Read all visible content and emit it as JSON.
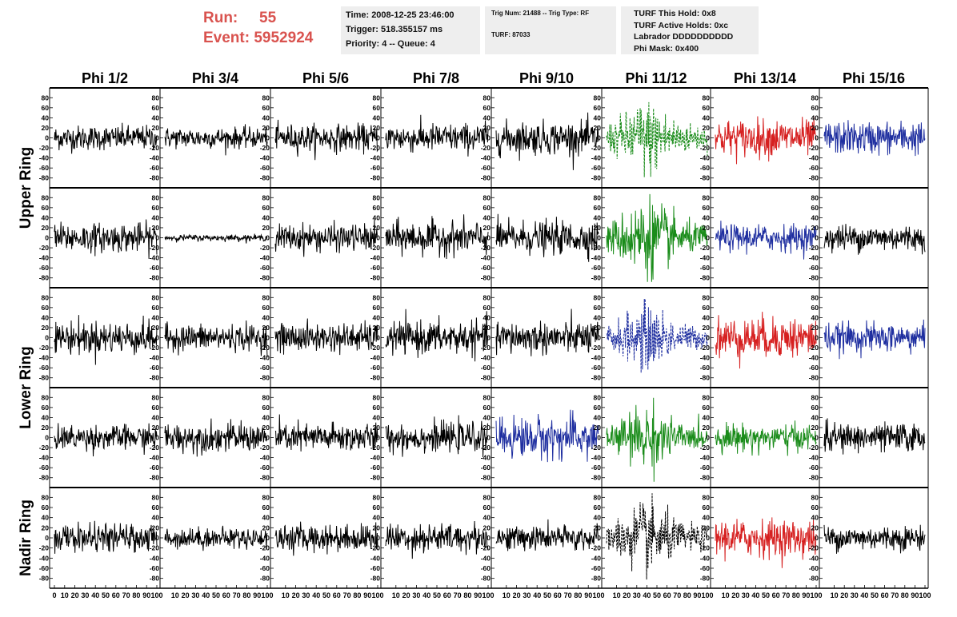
{
  "header": {
    "run_label": "Run:",
    "run_value": "55",
    "event_label": "Event:",
    "event_value": "5952924",
    "time": "Time: 2008-12-25 23:46:00",
    "trigger": "Trigger: 518.355157 ms",
    "priority": "Priority: 4 -- Queue: 4",
    "trig_num": "Trig Num: 21488 -- Trig Type: RF",
    "turf": "TURF: 87033",
    "turf_hold": "TURF This Hold: 0x8",
    "turf_active": "TURF Active Holds: 0xc",
    "labrador": "Labrador DDDDDDDDDD",
    "phi_mask": "Phi Mask: 0x400",
    "title_color": "#d9534f"
  },
  "chart_data": {
    "type": "line",
    "columns": [
      "Phi 1/2",
      "Phi 3/4",
      "Phi 5/6",
      "Phi 7/8",
      "Phi 9/10",
      "Phi 11/12",
      "Phi 13/14",
      "Phi 15/16"
    ],
    "ring_labels": [
      "Upper Ring",
      "Lower Ring",
      "Nadir Ring"
    ],
    "y_ticks": [
      "80",
      "60",
      "40",
      "20",
      "0",
      "-20",
      "-40",
      "-60",
      "-80"
    ],
    "ylim": [
      -90,
      90
    ],
    "x_ticks": [
      "0",
      "10",
      "20",
      "30",
      "40",
      "50",
      "60",
      "70",
      "80",
      "90",
      "100"
    ],
    "xlim": [
      0,
      100
    ],
    "colors": {
      "black": "#000000",
      "green": "#1a8c1a",
      "red": "#d62020",
      "blue": "#1f2fa0"
    },
    "rows": [
      {
        "traces": [
          {
            "color": "black",
            "amp": 12,
            "style": "solid"
          },
          {
            "color": "black",
            "amp": 10,
            "style": "solid"
          },
          {
            "color": "black",
            "amp": 13,
            "style": "solid"
          },
          {
            "color": "black",
            "amp": 14,
            "style": "solid"
          },
          {
            "color": "black",
            "amp": 16,
            "style": "solid"
          },
          {
            "color": "green",
            "amp": 28,
            "style": "dashed"
          },
          {
            "color": "red",
            "amp": 18,
            "style": "solid"
          },
          {
            "color": "blue",
            "amp": 16,
            "style": "solid"
          }
        ]
      },
      {
        "traces": [
          {
            "color": "black",
            "amp": 14,
            "style": "solid"
          },
          {
            "color": "black",
            "amp": 3,
            "style": "solid"
          },
          {
            "color": "black",
            "amp": 13,
            "style": "solid"
          },
          {
            "color": "black",
            "amp": 16,
            "style": "solid"
          },
          {
            "color": "black",
            "amp": 16,
            "style": "solid"
          },
          {
            "color": "green",
            "amp": 30,
            "style": "solid"
          },
          {
            "color": "blue",
            "amp": 13,
            "style": "solid"
          },
          {
            "color": "black",
            "amp": 13,
            "style": "solid"
          }
        ]
      },
      {
        "traces": [
          {
            "color": "black",
            "amp": 16,
            "style": "solid"
          },
          {
            "color": "black",
            "amp": 13,
            "style": "solid"
          },
          {
            "color": "black",
            "amp": 14,
            "style": "solid"
          },
          {
            "color": "black",
            "amp": 16,
            "style": "solid"
          },
          {
            "color": "black",
            "amp": 16,
            "style": "solid"
          },
          {
            "color": "blue",
            "amp": 24,
            "style": "dashed"
          },
          {
            "color": "red",
            "amp": 20,
            "style": "solid"
          },
          {
            "color": "blue",
            "amp": 14,
            "style": "solid"
          }
        ]
      },
      {
        "traces": [
          {
            "color": "black",
            "amp": 12,
            "style": "solid"
          },
          {
            "color": "black",
            "amp": 14,
            "style": "solid"
          },
          {
            "color": "black",
            "amp": 14,
            "style": "solid"
          },
          {
            "color": "black",
            "amp": 14,
            "style": "solid"
          },
          {
            "color": "blue",
            "amp": 20,
            "style": "solid"
          },
          {
            "color": "green",
            "amp": 24,
            "style": "solid"
          },
          {
            "color": "green",
            "amp": 13,
            "style": "solid"
          },
          {
            "color": "black",
            "amp": 14,
            "style": "solid"
          }
        ]
      },
      {
        "traces": [
          {
            "color": "black",
            "amp": 13,
            "style": "solid"
          },
          {
            "color": "black",
            "amp": 10,
            "style": "solid"
          },
          {
            "color": "black",
            "amp": 13,
            "style": "solid"
          },
          {
            "color": "black",
            "amp": 14,
            "style": "solid"
          },
          {
            "color": "black",
            "amp": 12,
            "style": "solid"
          },
          {
            "color": "black",
            "amp": 26,
            "style": "dashed"
          },
          {
            "color": "red",
            "amp": 18,
            "style": "solid"
          },
          {
            "color": "black",
            "amp": 12,
            "style": "solid"
          }
        ]
      }
    ]
  }
}
